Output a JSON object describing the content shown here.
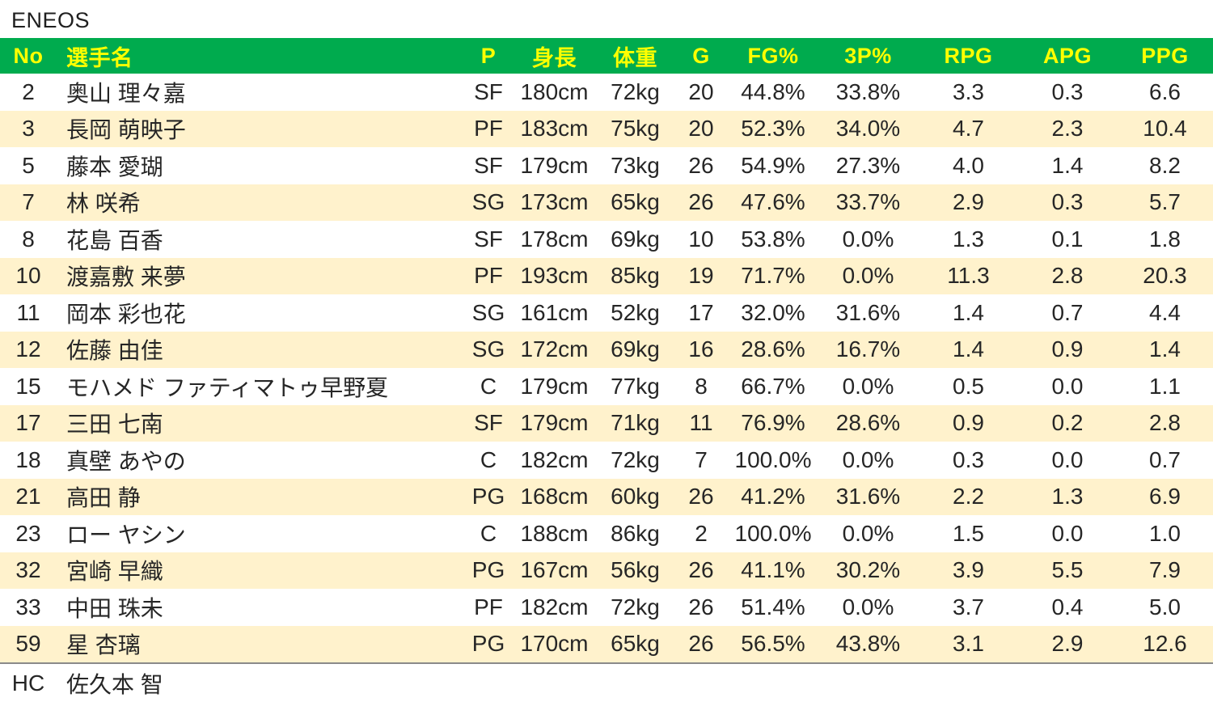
{
  "page": {
    "title": "ENEOS"
  },
  "colors": {
    "header_bg": "#00AB4E",
    "header_text": "#FFFF00",
    "row_stripe": "#FFF2CC",
    "row_plain": "#FFFFFF",
    "text": "#262626",
    "footer_rule": "#8A8A8A"
  },
  "table": {
    "columns": [
      {
        "key": "no",
        "label": "No"
      },
      {
        "key": "name",
        "label": "選手名"
      },
      {
        "key": "pos",
        "label": "P"
      },
      {
        "key": "height",
        "label": "身長"
      },
      {
        "key": "weight",
        "label": "体重"
      },
      {
        "key": "games",
        "label": "G"
      },
      {
        "key": "fg",
        "label": "FG%"
      },
      {
        "key": "tp",
        "label": "3P%"
      },
      {
        "key": "rpg",
        "label": "RPG"
      },
      {
        "key": "apg",
        "label": "APG"
      },
      {
        "key": "ppg",
        "label": "PPG"
      }
    ],
    "rows": [
      [
        "2",
        "奥山 理々嘉",
        "SF",
        "180cm",
        "72kg",
        "20",
        "44.8%",
        "33.8%",
        "3.3",
        "0.3",
        "6.6"
      ],
      [
        "3",
        "長岡 萌映子",
        "PF",
        "183cm",
        "75kg",
        "20",
        "52.3%",
        "34.0%",
        "4.7",
        "2.3",
        "10.4"
      ],
      [
        "5",
        "藤本 愛瑚",
        "SF",
        "179cm",
        "73kg",
        "26",
        "54.9%",
        "27.3%",
        "4.0",
        "1.4",
        "8.2"
      ],
      [
        "7",
        "林 咲希",
        "SG",
        "173cm",
        "65kg",
        "26",
        "47.6%",
        "33.7%",
        "2.9",
        "0.3",
        "5.7"
      ],
      [
        "8",
        "花島 百香",
        "SF",
        "178cm",
        "69kg",
        "10",
        "53.8%",
        "0.0%",
        "1.3",
        "0.1",
        "1.8"
      ],
      [
        "10",
        "渡嘉敷 来夢",
        "PF",
        "193cm",
        "85kg",
        "19",
        "71.7%",
        "0.0%",
        "11.3",
        "2.8",
        "20.3"
      ],
      [
        "11",
        "岡本 彩也花",
        "SG",
        "161cm",
        "52kg",
        "17",
        "32.0%",
        "31.6%",
        "1.4",
        "0.7",
        "4.4"
      ],
      [
        "12",
        "佐藤 由佳",
        "SG",
        "172cm",
        "69kg",
        "16",
        "28.6%",
        "16.7%",
        "1.4",
        "0.9",
        "1.4"
      ],
      [
        "15",
        "モハメド ファティマトゥ早野夏",
        "C",
        "179cm",
        "77kg",
        "8",
        "66.7%",
        "0.0%",
        "0.5",
        "0.0",
        "1.1"
      ],
      [
        "17",
        "三田 七南",
        "SF",
        "179cm",
        "71kg",
        "11",
        "76.9%",
        "28.6%",
        "0.9",
        "0.2",
        "2.8"
      ],
      [
        "18",
        "真壁 あやの",
        "C",
        "182cm",
        "72kg",
        "7",
        "100.0%",
        "0.0%",
        "0.3",
        "0.0",
        "0.7"
      ],
      [
        "21",
        "高田 静",
        "PG",
        "168cm",
        "60kg",
        "26",
        "41.2%",
        "31.6%",
        "2.2",
        "1.3",
        "6.9"
      ],
      [
        "23",
        "ロー ヤシン",
        "C",
        "188cm",
        "86kg",
        "2",
        "100.0%",
        "0.0%",
        "1.5",
        "0.0",
        "1.0"
      ],
      [
        "32",
        "宮崎 早織",
        "PG",
        "167cm",
        "56kg",
        "26",
        "41.1%",
        "30.2%",
        "3.9",
        "5.5",
        "7.9"
      ],
      [
        "33",
        "中田 珠未",
        "PF",
        "182cm",
        "72kg",
        "26",
        "51.4%",
        "0.0%",
        "3.7",
        "0.4",
        "5.0"
      ],
      [
        "59",
        "星 杏璃",
        "PG",
        "170cm",
        "65kg",
        "26",
        "56.5%",
        "43.8%",
        "3.1",
        "2.9",
        "12.6"
      ]
    ],
    "footer": {
      "label": "HC",
      "value": "佐久本 智"
    }
  }
}
